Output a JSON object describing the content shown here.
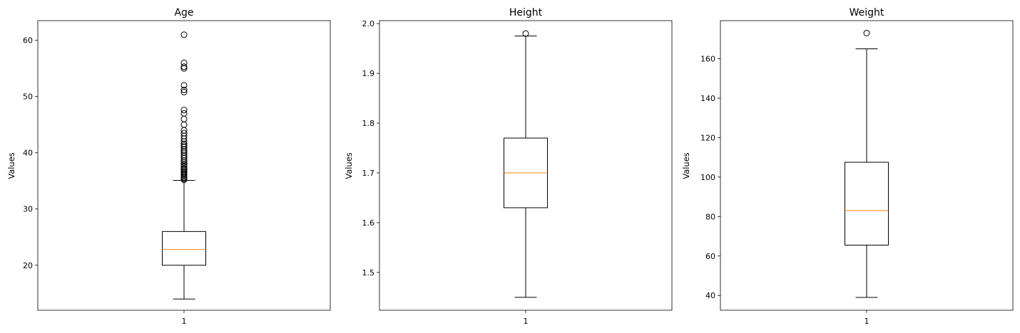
{
  "chart_data": [
    {
      "type": "boxplot",
      "title": "Age",
      "xlabel": "",
      "ylabel": "Values",
      "categories": [
        "1"
      ],
      "ylim": [
        12,
        63.5
      ],
      "yticks": [
        20,
        30,
        40,
        50,
        60
      ],
      "grid": false,
      "box": {
        "whisker_low": 14,
        "q1": 20,
        "median": 22.8,
        "q3": 26,
        "whisker_high": 35.1
      },
      "outliers": [
        35.2,
        35.4,
        35.6,
        35.8,
        36.0,
        36.2,
        36.4,
        36.6,
        36.8,
        37.0,
        37.2,
        37.5,
        37.8,
        38.0,
        38.3,
        38.6,
        39.0,
        39.3,
        39.6,
        40.0,
        40.3,
        40.6,
        41.0,
        41.3,
        41.6,
        42.0,
        42.5,
        43.0,
        43.5,
        44.0,
        45.0,
        46.0,
        47.0,
        47.6,
        50.8,
        51.2,
        52.0,
        55.0,
        55.3,
        56.0,
        61.0
      ]
    },
    {
      "type": "boxplot",
      "title": "Height",
      "xlabel": "",
      "ylabel": "Values",
      "categories": [
        "1"
      ],
      "ylim": [
        1.424,
        2.006
      ],
      "yticks": [
        1.5,
        1.6,
        1.7,
        1.8,
        1.9,
        2.0
      ],
      "ytick_labels": [
        "1.5",
        "1.6",
        "1.7",
        "1.8",
        "1.9",
        "2.0"
      ],
      "grid": false,
      "box": {
        "whisker_low": 1.45,
        "q1": 1.63,
        "median": 1.7,
        "q3": 1.77,
        "whisker_high": 1.975
      },
      "outliers": [
        1.98
      ]
    },
    {
      "type": "boxplot",
      "title": "Weight",
      "xlabel": "",
      "ylabel": "Values",
      "categories": [
        "1"
      ],
      "ylim": [
        32.5,
        179.3
      ],
      "yticks": [
        40,
        60,
        80,
        100,
        120,
        140,
        160
      ],
      "grid": false,
      "box": {
        "whisker_low": 39,
        "q1": 65.5,
        "median": 83,
        "q3": 107.5,
        "whisker_high": 165
      },
      "outliers": [
        173
      ]
    }
  ],
  "style": {
    "box_color": "#000000",
    "median_color": "#ff7f0e",
    "background": "#ffffff"
  }
}
